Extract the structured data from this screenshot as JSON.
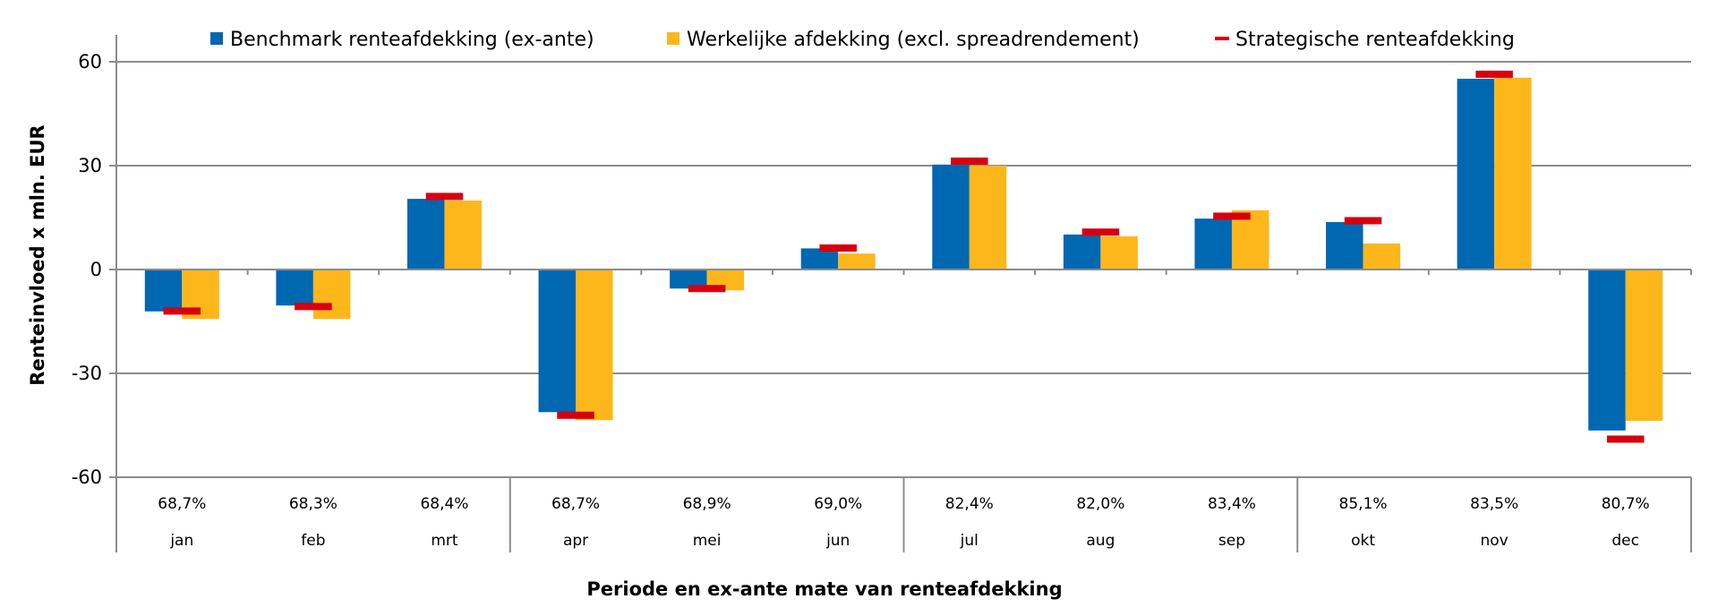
{
  "chart_data": {
    "type": "bar",
    "title": "",
    "xlabel": "Periode en ex-ante mate van renteafdekking",
    "ylabel": "Renteinvloed x mln. EUR",
    "ylim": [
      -60,
      60
    ],
    "yticks": [
      60,
      30,
      0,
      -30,
      -60
    ],
    "ytick_labels": [
      "60",
      "30",
      "0",
      "-30",
      "-60"
    ],
    "grid": true,
    "legend_position": "top",
    "categories": [
      "jan",
      "feb",
      "mrt",
      "apr",
      "mei",
      "jun",
      "jul",
      "aug",
      "sep",
      "okt",
      "nov",
      "dec"
    ],
    "category_sublabels": [
      "68,7%",
      "68,3%",
      "68,4%",
      "68,7%",
      "68,9%",
      "69,0%",
      "82,4%",
      "82,0%",
      "83,4%",
      "85,1%",
      "83,5%",
      "80,7%"
    ],
    "group_size": 3,
    "series": [
      {
        "name": "Benchmark renteafdekking (ex-ante)",
        "kind": "bar",
        "color": "#0067B1",
        "values": [
          -12.1,
          -10.4,
          20.4,
          -41.2,
          -5.5,
          6.1,
          30.3,
          10.1,
          14.7,
          13.7,
          55.1,
          -46.5
        ]
      },
      {
        "name": "Werkelijke afdekking (excl. spreadrendement)",
        "kind": "bar",
        "color": "#FDB71B",
        "values": [
          -14.3,
          -14.3,
          19.9,
          -43.5,
          -6.0,
          4.6,
          30.0,
          9.6,
          17.1,
          7.5,
          55.4,
          -43.7
        ]
      },
      {
        "name": "Strategische renteafdekking",
        "kind": "marker",
        "color": "#D7000F",
        "values": [
          -12.0,
          -10.7,
          21.1,
          -42.1,
          -5.5,
          6.2,
          31.3,
          10.8,
          15.4,
          14.1,
          56.4,
          -49.0
        ]
      }
    ],
    "colors": {
      "gridline": "#8C8C8C",
      "axis": "#8C8C8C",
      "text": "#000000"
    }
  }
}
